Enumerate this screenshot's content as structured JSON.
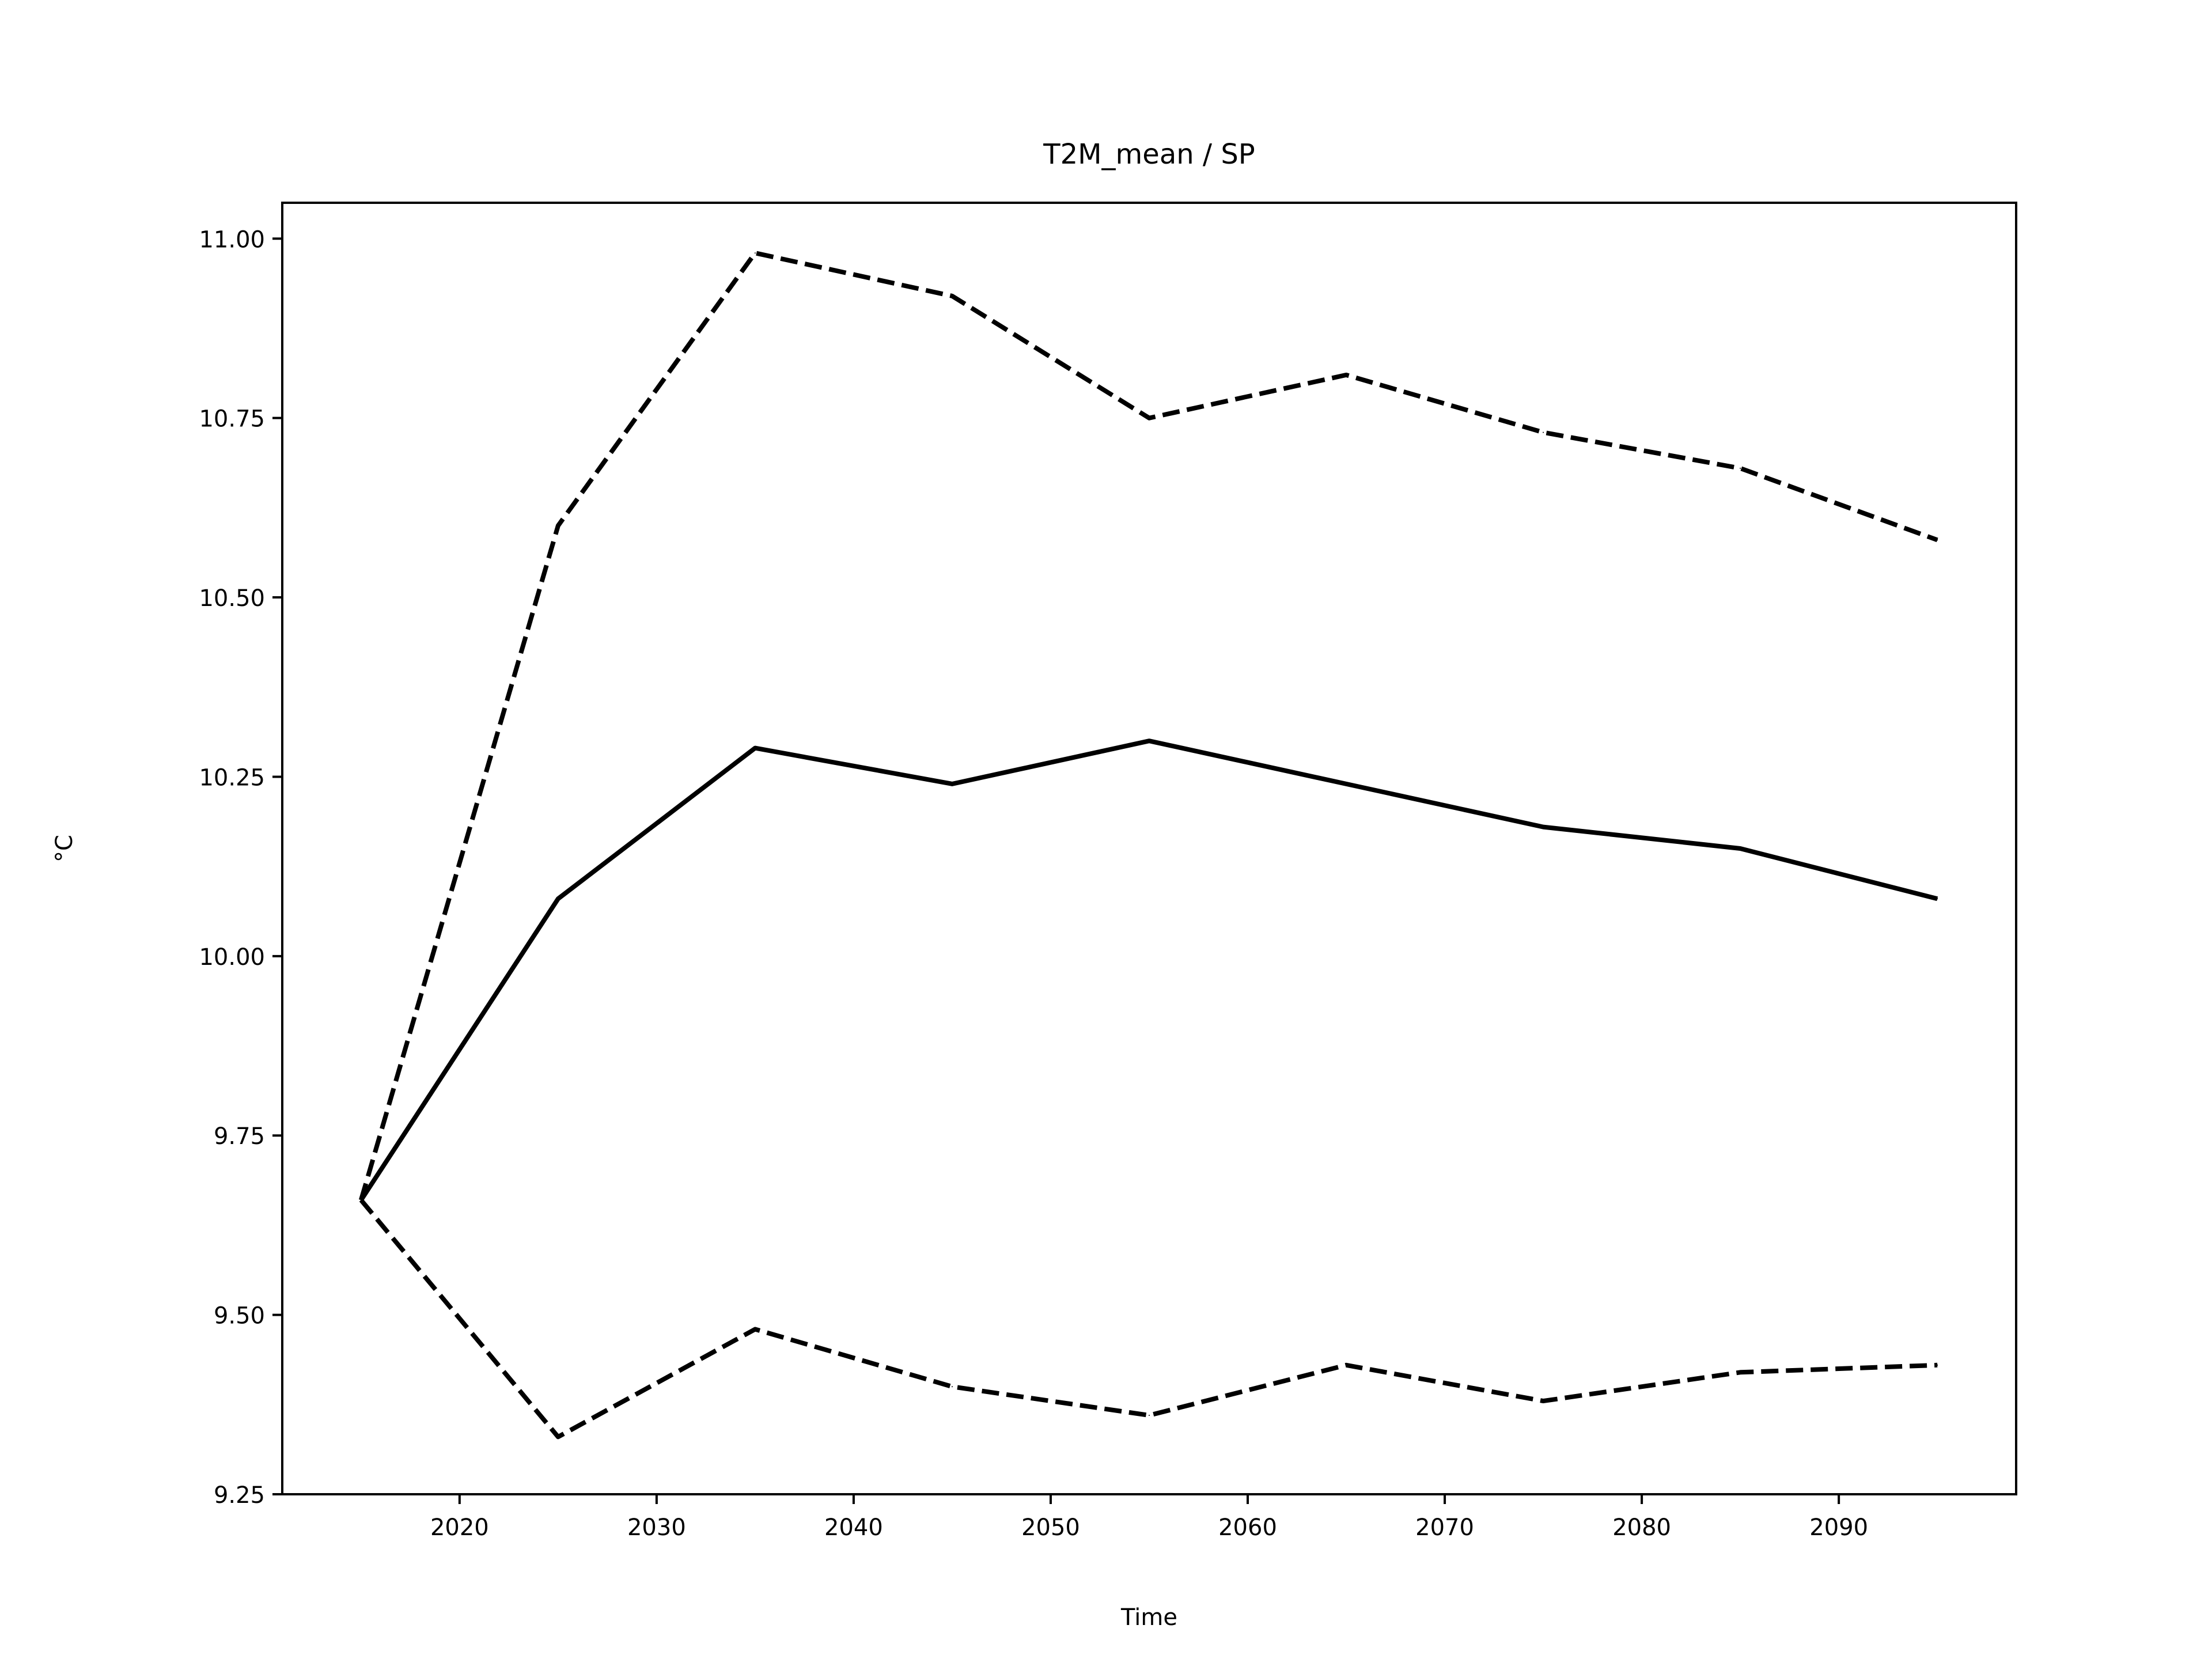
{
  "chart_data": {
    "type": "line",
    "title": "T2M_mean / SP",
    "xlabel": "Time",
    "ylabel": "°C",
    "xlim": [
      2011,
      2099
    ],
    "ylim": [
      9.25,
      11.05
    ],
    "xticks": [
      2020,
      2030,
      2040,
      2050,
      2060,
      2070,
      2080,
      2090
    ],
    "yticks": [
      9.25,
      9.5,
      9.75,
      10.0,
      10.25,
      10.5,
      10.75,
      11.0
    ],
    "ytick_labels": [
      "9.25",
      "9.50",
      "9.75",
      "10.00",
      "10.25",
      "10.50",
      "10.75",
      "11.00"
    ],
    "grid": false,
    "x": [
      2015,
      2025,
      2035,
      2045,
      2055,
      2065,
      2075,
      2085,
      2095
    ],
    "series": [
      {
        "style": "solid",
        "color": "#000000",
        "values": [
          9.66,
          10.08,
          10.29,
          10.24,
          10.3,
          10.24,
          10.18,
          10.15,
          10.08
        ]
      },
      {
        "style": "dashed",
        "color": "#000000",
        "values": [
          9.66,
          10.6,
          10.98,
          10.92,
          10.75,
          10.81,
          10.73,
          10.68,
          10.58
        ]
      },
      {
        "style": "dashed",
        "color": "#000000",
        "values": [
          9.66,
          9.33,
          9.48,
          9.4,
          9.36,
          9.43,
          9.38,
          9.42,
          9.43
        ]
      }
    ]
  }
}
